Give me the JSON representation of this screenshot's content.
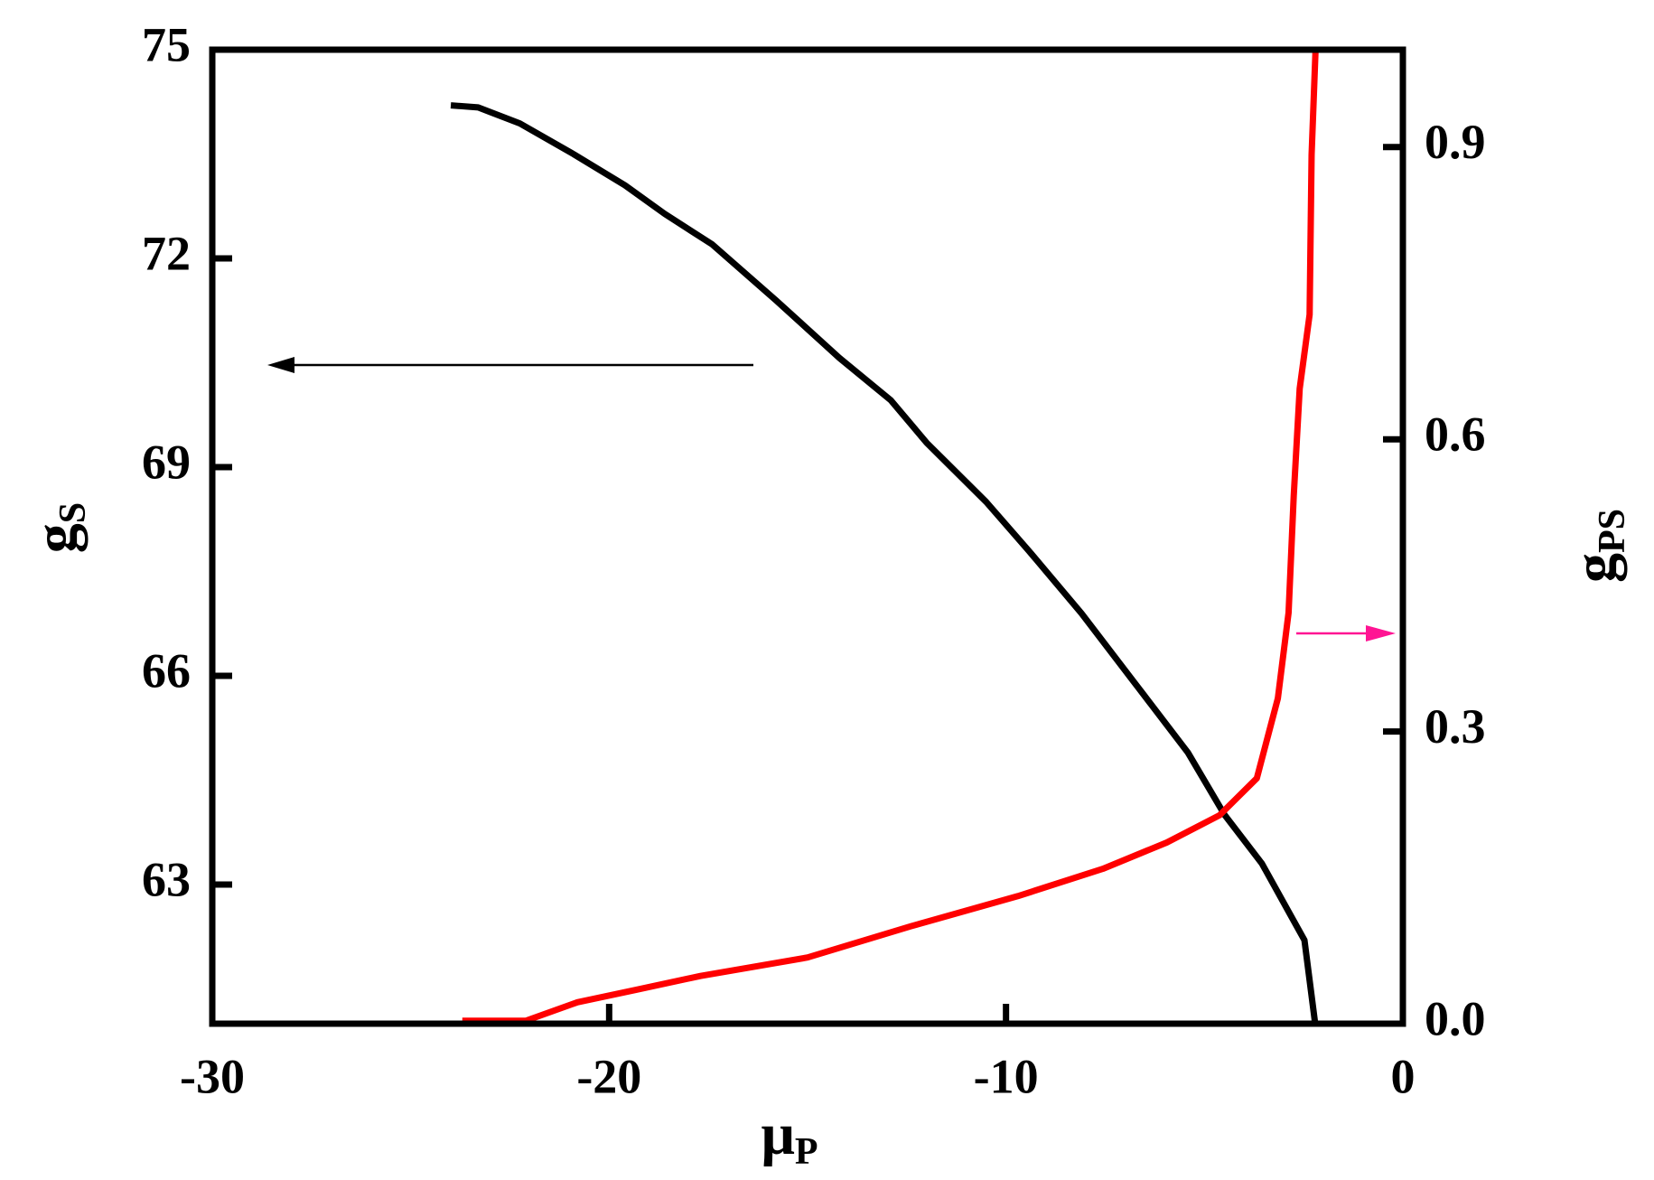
{
  "chart_data": {
    "type": "line",
    "xlabel": {
      "text": "μ",
      "sub": "P"
    },
    "ylabel": {
      "text": "g",
      "sub": "S"
    },
    "y2label": {
      "text": "g",
      "sub": "PS"
    },
    "xlim": [
      -30,
      0
    ],
    "xticks": [
      -30,
      -20,
      -10,
      0
    ],
    "ylim": [
      61,
      75
    ],
    "yticks": [
      63,
      66,
      69,
      72,
      75
    ],
    "y2lim": [
      0,
      1
    ],
    "y2ticks": [
      {
        "value": 0,
        "label": "0.0"
      },
      0.3,
      0.6,
      0.9
    ],
    "series": [
      {
        "color": "#000000",
        "axis": "y",
        "x": [
          -23.99,
          -23.3,
          -22.25,
          -20.9,
          -19.6,
          -18.6,
          -17.4,
          -15.8,
          -14.2,
          -12.9,
          -12.0,
          -10.5,
          -9.43,
          -8.1,
          -6.76,
          -5.42,
          -4.49,
          -3.55,
          -2.48,
          -2.21
        ],
        "values": [
          74.2,
          74.17,
          73.94,
          73.5,
          73.05,
          72.64,
          72.2,
          71.4,
          70.57,
          69.96,
          69.35,
          68.5,
          67.8,
          66.9,
          65.9,
          64.9,
          64.0,
          63.3,
          62.2,
          61.0
        ]
      },
      {
        "color": "#ff0000",
        "axis": "y2",
        "x": [
          -23.7,
          -22.1,
          -20.8,
          -19.3,
          -17.7,
          -15.0,
          -12.4,
          -9.7,
          -7.56,
          -5.95,
          -4.62,
          -3.68,
          -3.15,
          -2.88,
          -2.75,
          -2.6,
          -2.35,
          -2.3,
          -2.2
        ],
        "values": [
          0.003,
          0.003,
          0.022,
          0.035,
          0.049,
          0.068,
          0.1,
          0.131,
          0.159,
          0.186,
          0.214,
          0.252,
          0.334,
          0.422,
          0.542,
          0.652,
          0.728,
          0.892,
          1.0
        ]
      }
    ]
  }
}
